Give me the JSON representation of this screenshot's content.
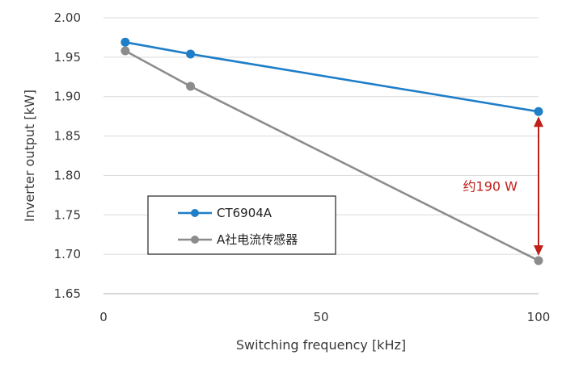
{
  "chart_data": {
    "type": "line",
    "title": "",
    "xlabel": "Switching frequency [kHz]",
    "ylabel": "Inverter output [kW]",
    "xlim": [
      0,
      100
    ],
    "ylim": [
      1.65,
      2.0
    ],
    "xticks": [
      "0",
      "50",
      "100"
    ],
    "yticks": [
      "1.65",
      "1.70",
      "1.75",
      "1.80",
      "1.85",
      "1.90",
      "1.95",
      "2.00"
    ],
    "grid": true,
    "legend_position": "lower-left",
    "series": [
      {
        "name": "CT6904A",
        "color": "#1f7ec8",
        "x": [
          5,
          20,
          100
        ],
        "y": [
          1.969,
          1.954,
          1.881
        ]
      },
      {
        "name": "A社电流传感器",
        "color": "#8c8c8c",
        "x": [
          5,
          20,
          100
        ],
        "y": [
          1.958,
          1.913,
          1.692
        ]
      }
    ],
    "annotation": {
      "text": "约190 W",
      "color": "#c0201a",
      "x": 100,
      "y_from": 1.881,
      "y_to": 1.692
    }
  }
}
